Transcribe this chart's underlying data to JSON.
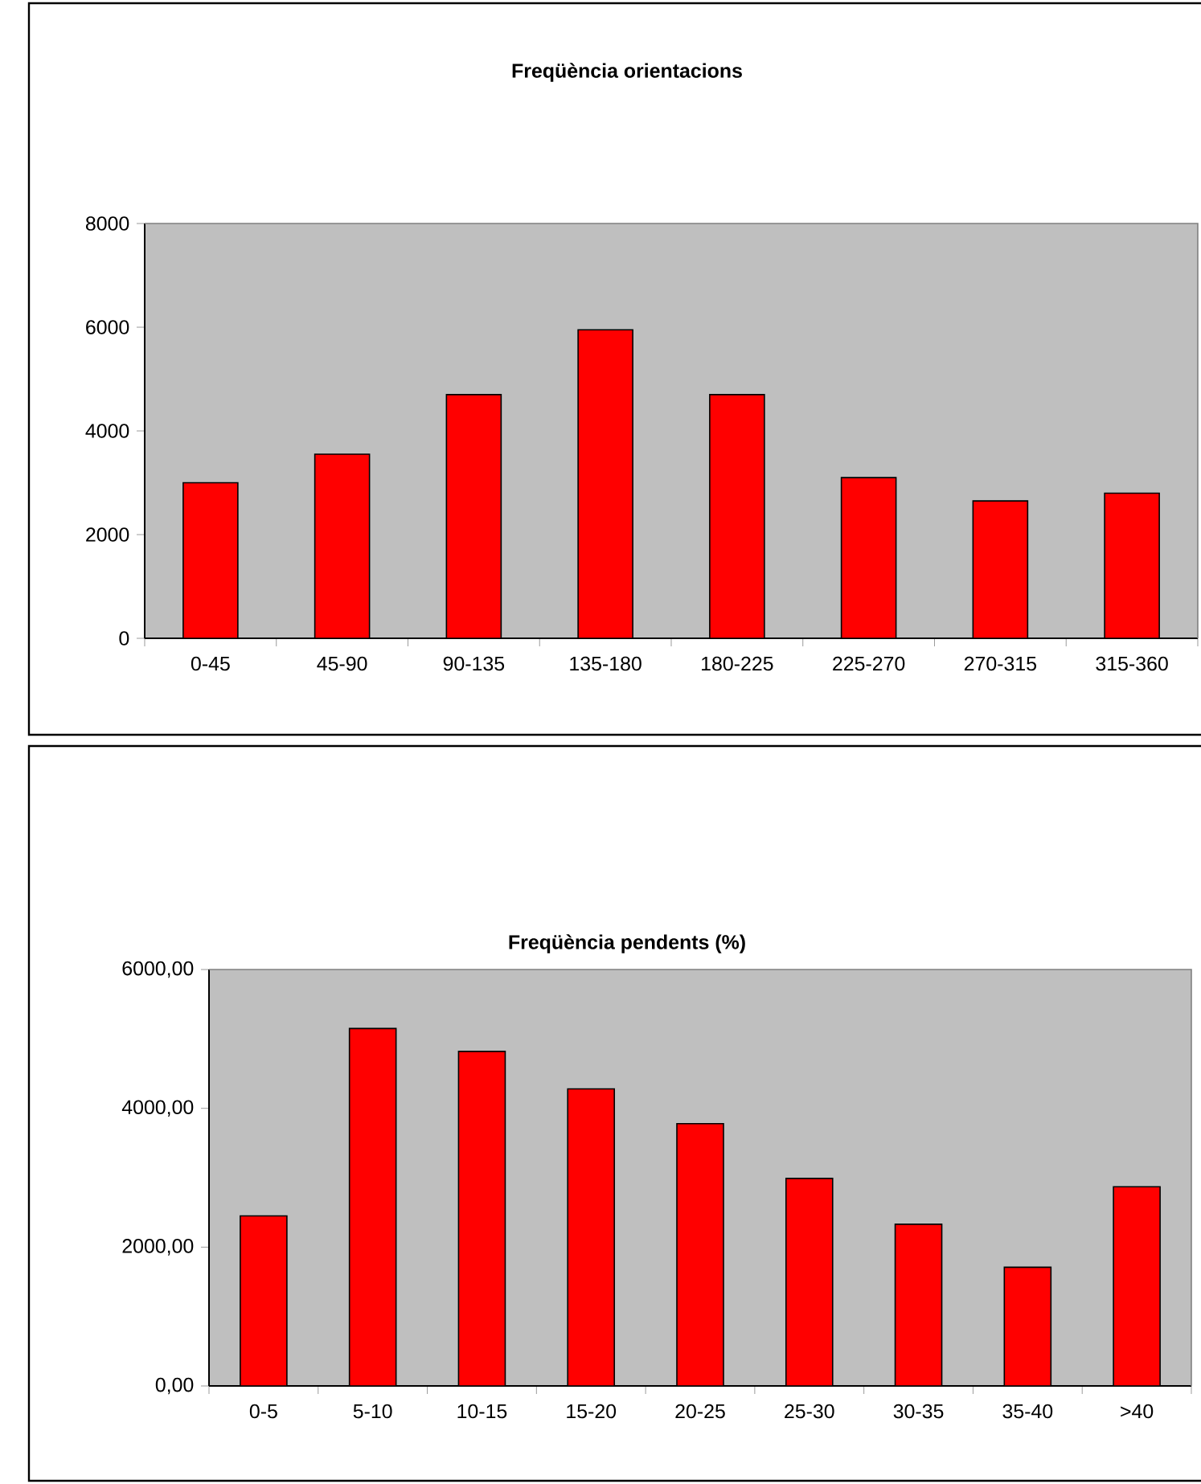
{
  "chart_data": [
    {
      "type": "bar",
      "title": "Freqüència orientacions",
      "categories": [
        "0-45",
        "45-90",
        "90-135",
        "135-180",
        "180-225",
        "225-270",
        "270-315",
        "315-360"
      ],
      "values": [
        3000,
        3550,
        4700,
        5950,
        4700,
        3100,
        2650,
        2800
      ],
      "color": "#ff0000",
      "ylim": [
        0,
        8000
      ],
      "yticks": [
        0,
        2000,
        4000,
        6000,
        8000
      ]
    },
    {
      "type": "bar",
      "title": "Freqüència pendents (%)",
      "categories": [
        "0-5",
        "5-10",
        "10-15",
        "15-20",
        "20-25",
        "25-30",
        "30-35",
        "35-40",
        ">40"
      ],
      "values": [
        2450,
        5150,
        4820,
        4280,
        3780,
        2990,
        2330,
        1710,
        2870
      ],
      "color": "#ff0000",
      "ylim": [
        0,
        6000
      ],
      "yticks": [
        {
          "value": 0,
          "label": "0,00"
        },
        {
          "value": 2000,
          "label": "2000,00"
        },
        {
          "value": 4000,
          "label": "4000,00"
        },
        {
          "value": 6000,
          "label": "6000,00"
        }
      ]
    }
  ]
}
